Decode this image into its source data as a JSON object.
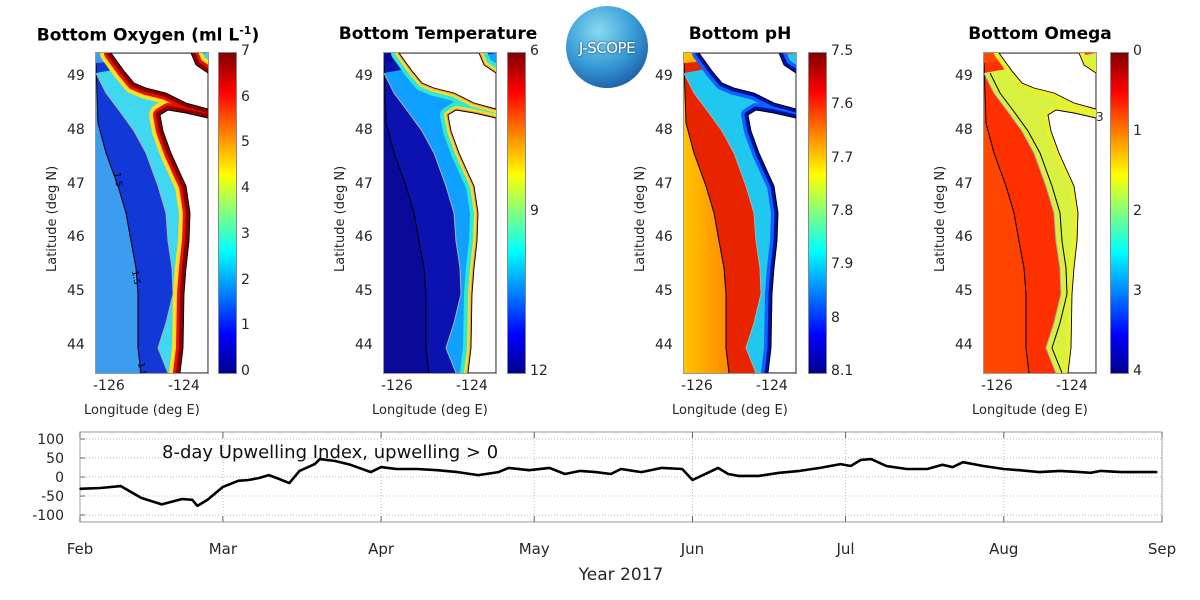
{
  "logo": {
    "text": "J-SCOPE"
  },
  "panels": [
    {
      "id": "oxygen",
      "title": "Bottom Oxygen (ml L",
      "title_sup": "-1",
      "title_end": ")",
      "colorbar_ticks": [
        "7",
        "6",
        "5",
        "4",
        "3",
        "2",
        "1",
        "0"
      ],
      "contour_labels": [
        "1.5",
        "1.5",
        "1.5"
      ],
      "colors": {
        "offshore": "#3c9cf0",
        "offshore2": "#3c9cf0",
        "slope": "#1238d8",
        "shelf": "#40d8f0",
        "strokes": [
          [
            "#ffe020",
            22
          ],
          [
            "#e81000",
            14
          ],
          [
            "#8a0000",
            8
          ]
        ]
      }
    },
    {
      "id": "temperature",
      "title": "Bottom Temperature",
      "title_sup": "",
      "title_end": "",
      "colorbar_ticks": [
        "6",
        "9",
        "12"
      ],
      "colors": {
        "offshore": "#0a0a9a",
        "offshore2": "#0a0a9a",
        "slope": "#0c12b0",
        "shelf": "#10a0ff",
        "strokes": [
          [
            "#30e8d0",
            16
          ],
          [
            "#e8e040",
            8
          ],
          [
            "#ff9020",
            3
          ]
        ]
      }
    },
    {
      "id": "ph",
      "title": "Bottom pH",
      "title_sup": "",
      "title_end": "",
      "colorbar_ticks": [
        "7.5",
        "7.6",
        "7.7",
        "7.8",
        "7.9",
        "8",
        "8.1"
      ],
      "colors": {
        "offshore": "#ffc400",
        "offshore2": "#ff6a00",
        "slope": "#e82400",
        "shelf": "#20c8f0",
        "strokes": [
          [
            "#1060ff",
            14
          ],
          [
            "#0010a0",
            7
          ]
        ]
      }
    },
    {
      "id": "omega",
      "title": "Bottom Omega",
      "title_sup": "",
      "title_end": "",
      "colorbar_ticks": [
        "0",
        "1",
        "2",
        "3",
        "4"
      ],
      "contour_labels": [
        "3"
      ],
      "colors": {
        "offshore": "#ff4800",
        "offshore2": "#ff3c00",
        "slope": "#ff3000",
        "shelf": "#d8f040",
        "strokes": [
          [
            "#e8f030",
            10
          ]
        ]
      }
    }
  ],
  "map_axes": {
    "lat_ticks": [
      "49",
      "48",
      "47",
      "46",
      "45",
      "44"
    ],
    "lon_ticks": [
      "-126",
      "-124"
    ],
    "ylabel": "Latitude (deg N)",
    "xlabel": "Longitude (deg E)"
  },
  "chart_data": {
    "type": "line",
    "title": "",
    "annotation": "8-day Upwelling Index, upwelling > 0",
    "xlabel": "Year 2017",
    "ylabel": "",
    "xlim": [
      "2017-02-01",
      "2017-09-01"
    ],
    "ylim": [
      -120,
      120
    ],
    "grid": true,
    "x_tick_labels": [
      "Feb",
      "Mar",
      "Apr",
      "May",
      "Jun",
      "Jul",
      "Aug",
      "Sep"
    ],
    "x_tick_dates": [
      "2017-02-01",
      "2017-03-01",
      "2017-04-01",
      "2017-05-01",
      "2017-06-01",
      "2017-07-01",
      "2017-08-01",
      "2017-09-01"
    ],
    "y_ticks": [
      100,
      50,
      0,
      -50,
      -100
    ],
    "series": [
      {
        "color": "#000000",
        "points": [
          [
            "2017-02-01",
            -31
          ],
          [
            "2017-02-05",
            -29
          ],
          [
            "2017-02-09",
            -24
          ],
          [
            "2017-02-13",
            -55
          ],
          [
            "2017-02-17",
            -72
          ],
          [
            "2017-02-21",
            -58
          ],
          [
            "2017-02-23",
            -60
          ],
          [
            "2017-02-24",
            -76
          ],
          [
            "2017-02-26",
            -60
          ],
          [
            "2017-03-01",
            -26
          ],
          [
            "2017-03-04",
            -10
          ],
          [
            "2017-03-06",
            -8
          ],
          [
            "2017-03-08",
            -3
          ],
          [
            "2017-03-10",
            5
          ],
          [
            "2017-03-12",
            -5
          ],
          [
            "2017-03-14",
            -16
          ],
          [
            "2017-03-16",
            16
          ],
          [
            "2017-03-19",
            34
          ],
          [
            "2017-03-20",
            47
          ],
          [
            "2017-03-23",
            42
          ],
          [
            "2017-03-26",
            32
          ],
          [
            "2017-03-30",
            13
          ],
          [
            "2017-04-01",
            26
          ],
          [
            "2017-04-04",
            21
          ],
          [
            "2017-04-08",
            21
          ],
          [
            "2017-04-12",
            18
          ],
          [
            "2017-04-16",
            13
          ],
          [
            "2017-04-20",
            5
          ],
          [
            "2017-04-24",
            13
          ],
          [
            "2017-04-26",
            24
          ],
          [
            "2017-04-30",
            18
          ],
          [
            "2017-05-04",
            24
          ],
          [
            "2017-05-07",
            8
          ],
          [
            "2017-05-10",
            16
          ],
          [
            "2017-05-13",
            13
          ],
          [
            "2017-05-16",
            8
          ],
          [
            "2017-05-18",
            21
          ],
          [
            "2017-05-22",
            13
          ],
          [
            "2017-05-26",
            24
          ],
          [
            "2017-05-30",
            21
          ],
          [
            "2017-06-01",
            -8
          ],
          [
            "2017-06-04",
            11
          ],
          [
            "2017-06-06",
            24
          ],
          [
            "2017-06-08",
            8
          ],
          [
            "2017-06-10",
            3
          ],
          [
            "2017-06-14",
            3
          ],
          [
            "2017-06-18",
            11
          ],
          [
            "2017-06-22",
            16
          ],
          [
            "2017-06-26",
            24
          ],
          [
            "2017-06-30",
            34
          ],
          [
            "2017-07-02",
            29
          ],
          [
            "2017-07-04",
            45
          ],
          [
            "2017-07-06",
            47
          ],
          [
            "2017-07-09",
            29
          ],
          [
            "2017-07-13",
            21
          ],
          [
            "2017-07-17",
            21
          ],
          [
            "2017-07-20",
            32
          ],
          [
            "2017-07-22",
            26
          ],
          [
            "2017-07-24",
            39
          ],
          [
            "2017-07-28",
            29
          ],
          [
            "2017-08-01",
            21
          ],
          [
            "2017-08-04",
            18
          ],
          [
            "2017-08-08",
            13
          ],
          [
            "2017-08-12",
            16
          ],
          [
            "2017-08-16",
            13
          ],
          [
            "2017-08-18",
            11
          ],
          [
            "2017-08-20",
            16
          ],
          [
            "2017-08-24",
            13
          ],
          [
            "2017-08-31",
            13
          ]
        ]
      }
    ]
  }
}
